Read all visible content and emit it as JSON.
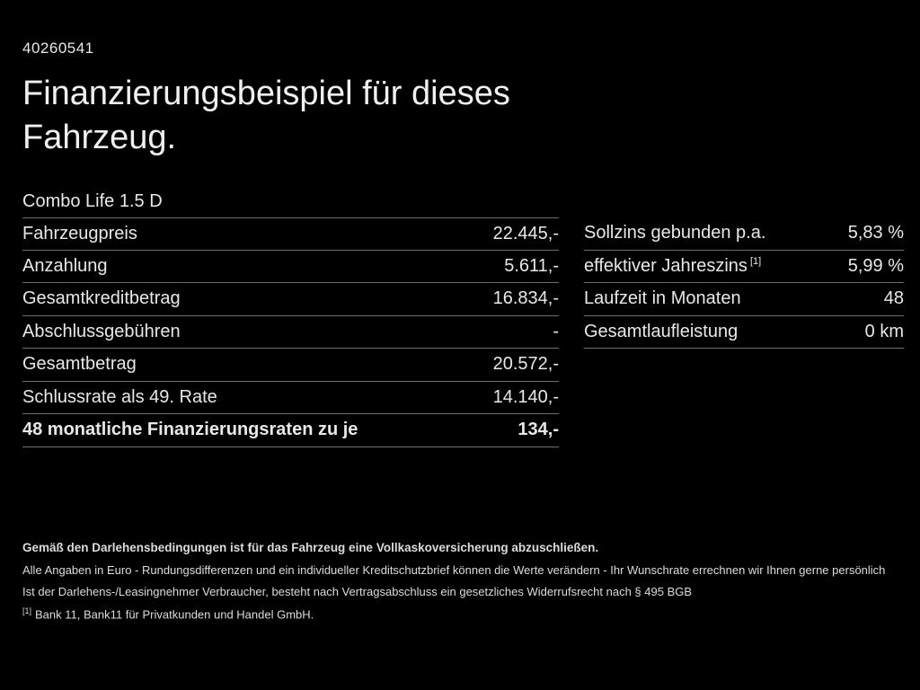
{
  "document": {
    "id": "40260541",
    "title": "Finanzierungsbeispiel für dieses Fahrzeug.",
    "vehicle_model": "Combo Life 1.5 D"
  },
  "finance_table": {
    "rows": [
      {
        "label": "Fahrzeugpreis",
        "value": "22.445,-",
        "bold": false
      },
      {
        "label": "Anzahlung",
        "value": "5.611,-",
        "bold": false
      },
      {
        "label": "Gesamtkreditbetrag",
        "value": "16.834,-",
        "bold": false
      },
      {
        "label": "Abschlussgebühren",
        "value": "-",
        "bold": false
      },
      {
        "label": "Gesamtbetrag",
        "value": "20.572,-",
        "bold": false
      },
      {
        "label": "Schlussrate als 49. Rate",
        "value": "14.140,-",
        "bold": false
      },
      {
        "label": "48 monatliche Finanzierungsraten zu je",
        "value": "134,-",
        "bold": true
      }
    ]
  },
  "conditions_table": {
    "rows": [
      {
        "label": "Sollzins gebunden p.a.",
        "label_sup": "",
        "value": "5,83 %",
        "bold": false
      },
      {
        "label": "effektiver Jahreszins",
        "label_sup": "[1]",
        "value": "5,99 %",
        "bold": false
      },
      {
        "label": "Laufzeit in Monaten",
        "label_sup": "",
        "value": "48",
        "bold": false
      },
      {
        "label": "Gesamtlaufleistung",
        "label_sup": "",
        "value": "0 km",
        "bold": false
      }
    ]
  },
  "footnotes": {
    "insurance_note": "Gemäß den Darlehensbedingungen ist für das Fahrzeug eine Vollkaskoversicherung abzuschließen.",
    "values_note": "Alle Angaben in Euro - Rundungsdifferenzen und ein individueller Kreditschutzbrief können die Werte verändern - Ihr Wunschrate errechnen wir Ihnen gerne persönlich",
    "withdrawal_note": "Ist der Darlehens-/Leasingnehmer Verbraucher, besteht nach Vertragsabschluss ein gesetzliches Widerrufsrecht nach § 495 BGB",
    "bank_ref_marker": "[1]",
    "bank_ref": "Bank 11, Bank11 für Privatkunden und Handel GmbH."
  },
  "colors": {
    "background": "#000000",
    "text": "#e8e8e8",
    "divider": "#6e6e6e"
  }
}
